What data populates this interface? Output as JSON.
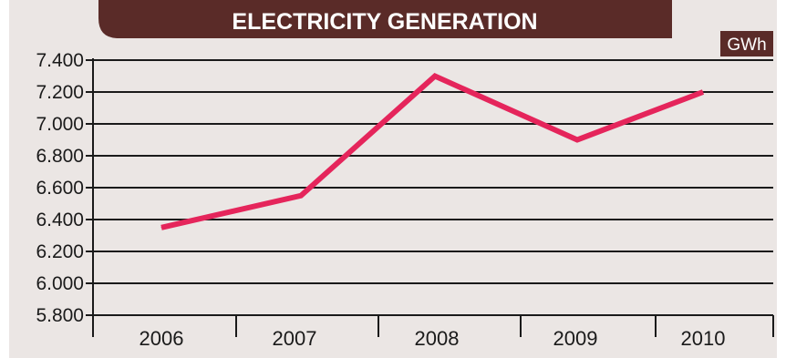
{
  "chart_data": {
    "type": "line",
    "title": "ELECTRICITY GENERATION",
    "unit": "GWh",
    "categories": [
      "2006",
      "2007",
      "2008",
      "2009",
      "2010"
    ],
    "series": [
      {
        "values": [
          6350,
          6550,
          7300,
          6900,
          7200
        ]
      }
    ],
    "ylim": [
      5800,
      7400
    ],
    "yticks": [
      5800,
      6000,
      6200,
      6400,
      6600,
      6800,
      7000,
      7200,
      7400
    ],
    "ytick_labels": [
      "5.800",
      "6.000",
      "6.200",
      "6.400",
      "6.600",
      "6.800",
      "7.000",
      "7.200",
      "7.400"
    ],
    "grid": true,
    "colors": {
      "background": "#ebe6e4",
      "title_bar": "#5a2b28",
      "line": "#e5255b",
      "grid": "#1a1a1a",
      "text": "#1a1a1a"
    }
  }
}
